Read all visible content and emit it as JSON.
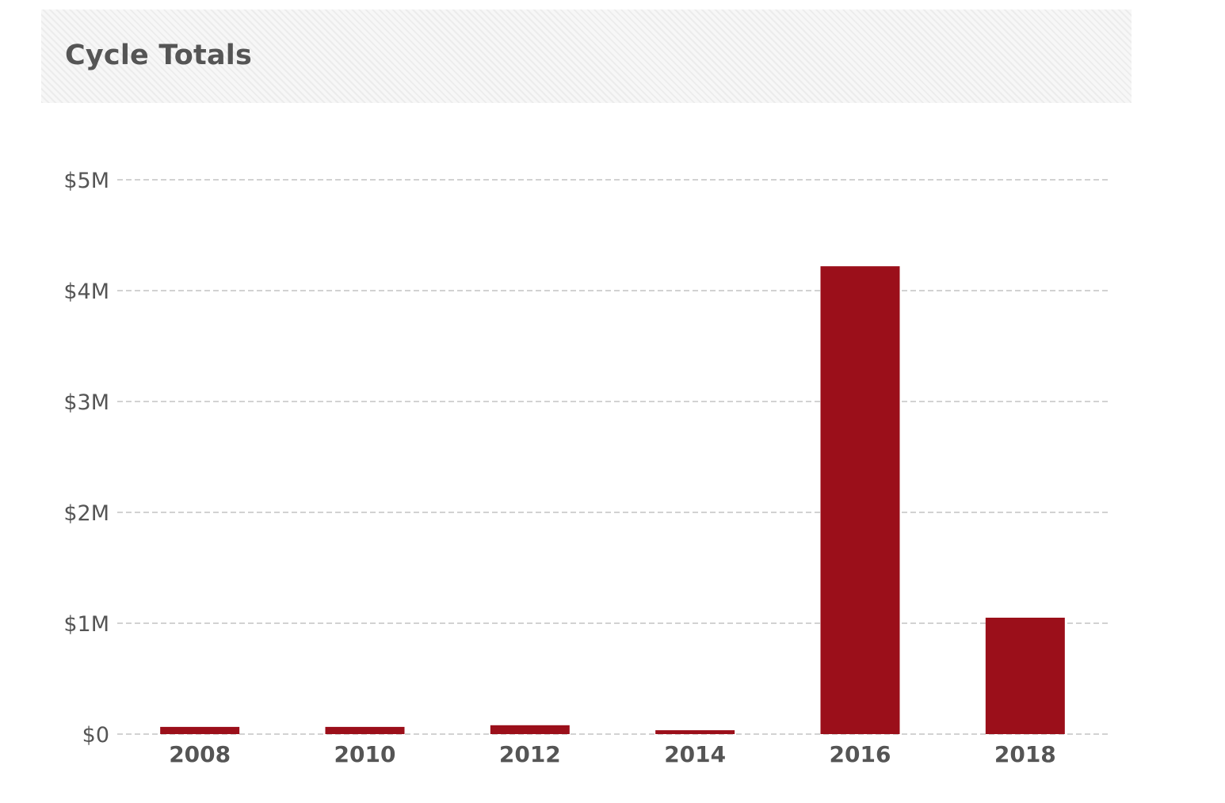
{
  "panel": {
    "title": "Cycle Totals"
  },
  "chart_data": {
    "type": "bar",
    "title": "",
    "xlabel": "",
    "ylabel": "",
    "categories": [
      "2008",
      "2010",
      "2012",
      "2014",
      "2016",
      "2018"
    ],
    "values": [
      65000,
      65000,
      80000,
      35000,
      4220000,
      1050000
    ],
    "ylim": [
      0,
      5000000
    ],
    "yticks": [
      {
        "value": 0,
        "label": "$0"
      },
      {
        "value": 1000000,
        "label": "$1M"
      },
      {
        "value": 2000000,
        "label": "$2M"
      },
      {
        "value": 3000000,
        "label": "$3M"
      },
      {
        "value": 4000000,
        "label": "$4M"
      },
      {
        "value": 5000000,
        "label": "$5M"
      }
    ],
    "grid": true,
    "legend": "none",
    "bar_color": "#9b0f1a"
  }
}
